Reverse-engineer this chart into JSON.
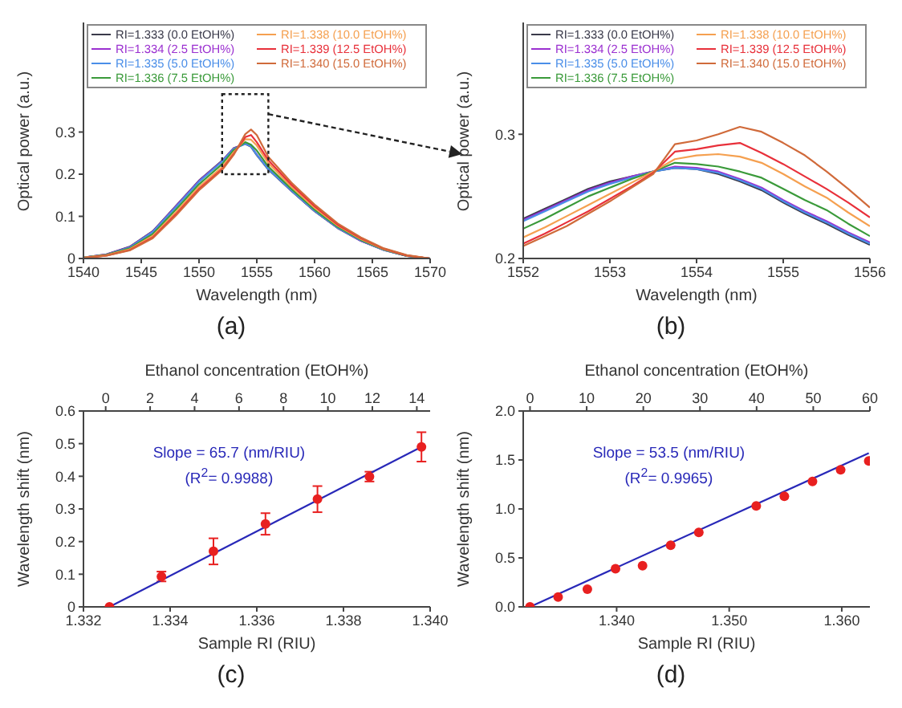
{
  "chart_data": [
    {
      "type": "line",
      "title": "(a)",
      "xlabel": "Wavelength (nm)",
      "ylabel": "Optical power (a.u.)",
      "legend": "top",
      "xlim": [
        1540,
        1570
      ],
      "xticks": [
        1540,
        1545,
        1550,
        1555,
        1560,
        1565,
        1570
      ],
      "ylim": [
        0,
        0.56
      ],
      "yticks": [
        0,
        0.1,
        0.2,
        0.3
      ],
      "x": [
        1540,
        1542,
        1544,
        1546,
        1548,
        1550,
        1552,
        1553,
        1554,
        1554.5,
        1555,
        1556,
        1558,
        1560,
        1562,
        1564,
        1566,
        1568,
        1570
      ],
      "series": [
        {
          "name": "RI=1.333 (0.0 EtOH%)",
          "color": "#3a3a4a",
          "values": [
            0.002,
            0.01,
            0.028,
            0.065,
            0.125,
            0.185,
            0.232,
            0.262,
            0.272,
            0.265,
            0.245,
            0.211,
            0.16,
            0.112,
            0.072,
            0.042,
            0.02,
            0.006,
            0
          ]
        },
        {
          "name": "RI=1.334 (2.5 EtOH%)",
          "color": "#9b30d0",
          "values": [
            0.002,
            0.01,
            0.027,
            0.064,
            0.124,
            0.184,
            0.231,
            0.261,
            0.273,
            0.266,
            0.247,
            0.213,
            0.161,
            0.113,
            0.073,
            0.042,
            0.02,
            0.006,
            0
          ]
        },
        {
          "name": "RI=1.335 (5.0 EtOH%)",
          "color": "#4a8ee8",
          "values": [
            0.002,
            0.009,
            0.026,
            0.063,
            0.122,
            0.182,
            0.23,
            0.26,
            0.272,
            0.266,
            0.246,
            0.212,
            0.161,
            0.113,
            0.073,
            0.043,
            0.02,
            0.006,
            0
          ]
        },
        {
          "name": "RI=1.336 (7.5 EtOH%)",
          "color": "#3a9a3a",
          "values": [
            0.002,
            0.009,
            0.024,
            0.058,
            0.116,
            0.176,
            0.224,
            0.257,
            0.276,
            0.27,
            0.256,
            0.218,
            0.165,
            0.116,
            0.075,
            0.044,
            0.021,
            0.006,
            0
          ]
        },
        {
          "name": "RI=1.338 (10.0 EtOH%)",
          "color": "#f5a050",
          "values": [
            0.002,
            0.008,
            0.022,
            0.054,
            0.11,
            0.17,
            0.217,
            0.252,
            0.283,
            0.282,
            0.268,
            0.226,
            0.17,
            0.12,
            0.078,
            0.046,
            0.022,
            0.007,
            0
          ]
        },
        {
          "name": "RI=1.339 (12.5 EtOH%)",
          "color": "#e8303a",
          "values": [
            0.001,
            0.007,
            0.02,
            0.05,
            0.105,
            0.165,
            0.212,
            0.248,
            0.288,
            0.293,
            0.276,
            0.233,
            0.175,
            0.124,
            0.08,
            0.048,
            0.023,
            0.007,
            0
          ]
        },
        {
          "name": "RI=1.340 (15.0 EtOH%)",
          "color": "#d06a3a",
          "values": [
            0.001,
            0.007,
            0.019,
            0.048,
            0.102,
            0.162,
            0.21,
            0.246,
            0.295,
            0.306,
            0.293,
            0.241,
            0.18,
            0.128,
            0.083,
            0.05,
            0.024,
            0.008,
            0
          ]
        }
      ]
    },
    {
      "type": "line",
      "title": "(b)",
      "xlabel": "Wavelength (nm)",
      "ylabel": "Optical power (a.u.)",
      "legend": "top",
      "xlim": [
        1552,
        1556
      ],
      "xticks": [
        1552,
        1553,
        1554,
        1555,
        1556
      ],
      "ylim": [
        0.2,
        0.39
      ],
      "yticks": [
        0.2,
        0.3
      ],
      "x": [
        1552,
        1552.25,
        1552.5,
        1552.75,
        1553,
        1553.25,
        1553.5,
        1553.75,
        1554,
        1554.25,
        1554.5,
        1554.75,
        1555,
        1555.25,
        1555.5,
        1555.75,
        1556
      ],
      "series": [
        {
          "name": "RI=1.333 (0.0 EtOH%)",
          "color": "#3a3a4a",
          "values": [
            0.232,
            0.24,
            0.248,
            0.256,
            0.262,
            0.266,
            0.27,
            0.273,
            0.272,
            0.268,
            0.262,
            0.255,
            0.245,
            0.236,
            0.228,
            0.219,
            0.211
          ]
        },
        {
          "name": "RI=1.334 (2.5 EtOH%)",
          "color": "#9b30d0",
          "values": [
            0.231,
            0.239,
            0.247,
            0.255,
            0.261,
            0.266,
            0.27,
            0.274,
            0.273,
            0.27,
            0.264,
            0.257,
            0.247,
            0.238,
            0.23,
            0.221,
            0.213
          ]
        },
        {
          "name": "RI=1.335 (5.0 EtOH%)",
          "color": "#4a8ee8",
          "values": [
            0.23,
            0.238,
            0.246,
            0.254,
            0.26,
            0.265,
            0.27,
            0.273,
            0.272,
            0.269,
            0.263,
            0.256,
            0.246,
            0.237,
            0.229,
            0.22,
            0.212
          ]
        },
        {
          "name": "RI=1.336 (7.5 EtOH%)",
          "color": "#3a9a3a",
          "values": [
            0.224,
            0.232,
            0.241,
            0.25,
            0.257,
            0.264,
            0.27,
            0.277,
            0.276,
            0.274,
            0.27,
            0.265,
            0.256,
            0.247,
            0.239,
            0.228,
            0.218
          ]
        },
        {
          "name": "RI=1.338 (10.0 EtOH%)",
          "color": "#f5a050",
          "values": [
            0.217,
            0.225,
            0.234,
            0.243,
            0.252,
            0.261,
            0.27,
            0.28,
            0.283,
            0.284,
            0.282,
            0.277,
            0.268,
            0.258,
            0.249,
            0.237,
            0.226
          ]
        },
        {
          "name": "RI=1.339 (12.5 EtOH%)",
          "color": "#e8303a",
          "values": [
            0.212,
            0.22,
            0.229,
            0.238,
            0.248,
            0.258,
            0.269,
            0.286,
            0.288,
            0.291,
            0.293,
            0.285,
            0.276,
            0.266,
            0.256,
            0.245,
            0.233
          ]
        },
        {
          "name": "RI=1.340 (15.0 EtOH%)",
          "color": "#d06a3a",
          "values": [
            0.21,
            0.218,
            0.226,
            0.236,
            0.246,
            0.257,
            0.268,
            0.292,
            0.295,
            0.3,
            0.306,
            0.302,
            0.293,
            0.283,
            0.27,
            0.256,
            0.241
          ]
        }
      ]
    },
    {
      "type": "scatter",
      "title": "(c)",
      "xlabel": "Sample RI (RIU)",
      "x2label": "Ethanol concentration (EtOH%)",
      "ylabel": "Wavelength shift (nm)",
      "xlim": [
        1.332,
        1.34
      ],
      "xticks": [
        1.332,
        1.334,
        1.336,
        1.338,
        {
          "value": 1.34,
          "label": "1.340"
        }
      ],
      "x2lim": [
        -1,
        14.6
      ],
      "x2ticks": [
        0,
        2,
        4,
        6,
        8,
        10,
        12,
        14
      ],
      "ylim": [
        0,
        0.6
      ],
      "yticks": [
        0,
        0.1,
        0.2,
        0.3,
        0.4,
        0.5,
        0.6
      ],
      "annotations": [
        "Slope = 65.7 (nm/RIU)",
        "(R$^{2}$= 0.9988)"
      ],
      "series": [
        {
          "marker": "circle",
          "color": "#e82020",
          "x": [
            1.3326,
            1.3338,
            1.335,
            1.3362,
            1.3374,
            1.3386,
            1.3398
          ],
          "values": [
            0,
            0.093,
            0.17,
            0.254,
            0.33,
            0.399,
            0.49
          ],
          "errors": [
            null,
            0.015,
            0.04,
            0.033,
            0.04,
            0.015,
            0.045
          ]
        },
        {
          "type": "line",
          "color": "#2828b8",
          "x": [
            1.3326,
            1.3398
          ],
          "values": [
            0,
            0.49
          ]
        }
      ]
    },
    {
      "type": "scatter",
      "title": "(d)",
      "xlabel": "Sample RI (RIU)",
      "x2label": "Ethanol concentration (EtOH%)",
      "ylabel": "Wavelength shift (nm)",
      "xlim": [
        1.3317,
        1.3625
      ],
      "xticks": [
        {
          "value": 1.34,
          "label": "1.340"
        },
        {
          "value": 1.35,
          "label": "1.350"
        },
        {
          "value": 1.36,
          "label": "1.360"
        }
      ],
      "x2lim": [
        -1.2,
        60
      ],
      "x2ticks": [
        0,
        10,
        20,
        30,
        40,
        50,
        60
      ],
      "ylim": [
        0,
        2
      ],
      "yticks": [
        {
          "value": 0,
          "label": "0.0"
        },
        {
          "value": 0.5,
          "label": "0.5"
        },
        {
          "value": 1,
          "label": "1.0"
        },
        {
          "value": 1.5,
          "label": "1.5"
        },
        {
          "value": 2,
          "label": "2.0"
        }
      ],
      "annotations": [
        "Slope = 53.5 (nm/RIU)",
        "(R$^{2}$= 0.9965)"
      ],
      "series": [
        {
          "marker": "circle",
          "color": "#e82020",
          "x": [
            1.3323,
            1.3348,
            1.3374,
            1.3399,
            1.3423,
            1.3448,
            1.3473,
            1.3524,
            1.3549,
            1.3574,
            1.3599,
            1.3624
          ],
          "values": [
            0,
            0.1,
            0.18,
            0.39,
            0.42,
            0.63,
            0.76,
            1.03,
            1.13,
            1.28,
            1.4,
            1.49
          ]
        },
        {
          "type": "line",
          "color": "#2828b8",
          "x": [
            1.3323,
            1.3624
          ],
          "values": [
            0,
            1.57
          ]
        }
      ]
    }
  ]
}
